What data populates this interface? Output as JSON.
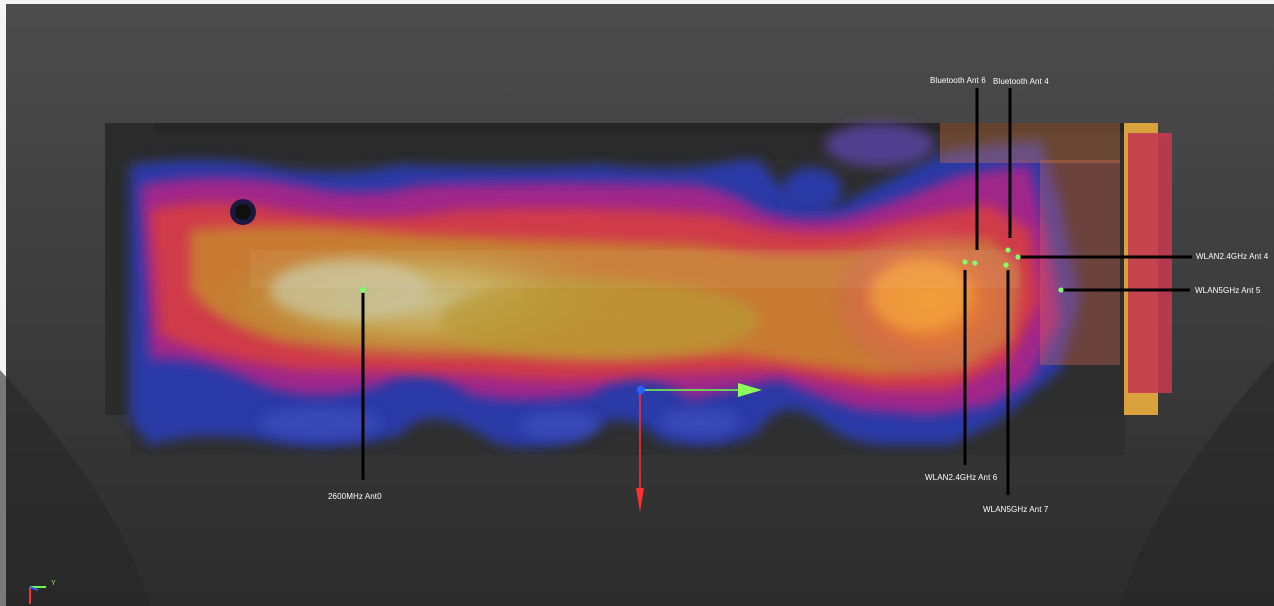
{
  "antennas": [
    {
      "id": "2600",
      "label": "2600MHz Ant0"
    },
    {
      "id": "bt6",
      "label": "Bluetooth Ant 6"
    },
    {
      "id": "bt4",
      "label": "Bluetooth Ant 4"
    },
    {
      "id": "wl24_4",
      "label": "WLAN2.4GHz Ant 4"
    },
    {
      "id": "wl5_5",
      "label": "WLAN5GHz Ant 5"
    },
    {
      "id": "wl24_6",
      "label": "WLAN2.4GHz Ant 6"
    },
    {
      "id": "wl5_7",
      "label": "WLAN5GHz Ant 7"
    }
  ],
  "triad": {
    "y_label": "Y"
  },
  "colors": {
    "background_top": "#4a4a4a",
    "background_bottom": "#2e2e2e",
    "heat_low": "#2233aa",
    "heat_mid": "#cc2266",
    "heat_high": "#c89a3a",
    "marker": "#7dff6a",
    "axis_x": "#6cff4a",
    "axis_y": "#ff3030",
    "axis_origin": "#2a62ff"
  }
}
